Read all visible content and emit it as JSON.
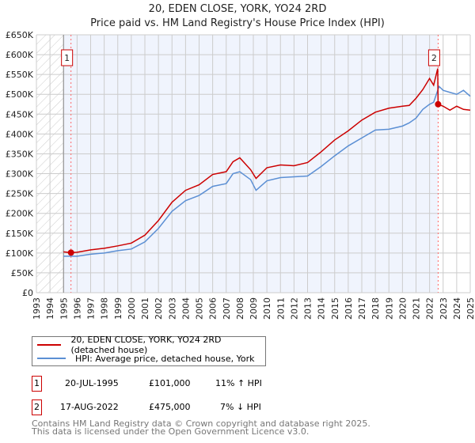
{
  "chart_data": {
    "type": "line",
    "title": "20, EDEN CLOSE, YORK, YO24 2RD",
    "subtitle": "Price paid vs. HM Land Registry's House Price Index (HPI)",
    "xlim": [
      1993,
      2025
    ],
    "ylim": [
      0,
      650000
    ],
    "x_ticks": [
      "1993",
      "1994",
      "1995",
      "1996",
      "1997",
      "1998",
      "1999",
      "2000",
      "2001",
      "2002",
      "2003",
      "2004",
      "2005",
      "2006",
      "2007",
      "2008",
      "2009",
      "2010",
      "2011",
      "2012",
      "2013",
      "2014",
      "2015",
      "2016",
      "2017",
      "2018",
      "2019",
      "2020",
      "2021",
      "2022",
      "2023",
      "2024",
      "2025"
    ],
    "y_ticks": [
      "£0",
      "£50K",
      "£100K",
      "£150K",
      "£200K",
      "£250K",
      "£300K",
      "£350K",
      "£400K",
      "£450K",
      "£500K",
      "£550K",
      "£600K",
      "£650K"
    ],
    "grid": true,
    "series": [
      {
        "name": "20, EDEN CLOSE, YORK, YO24 2RD (detached house)",
        "color": "#cc0000",
        "x": [
          1995,
          1995.55,
          1996,
          1997,
          1998,
          1999,
          2000,
          2001,
          2002,
          2003,
          2004,
          2005,
          2006,
          2007,
          2007.5,
          2008,
          2008.8,
          2009.2,
          2010,
          2011,
          2012,
          2013,
          2014,
          2015,
          2016,
          2017,
          2018,
          2019,
          2020,
          2020.5,
          2021,
          2021.5,
          2022,
          2022.3,
          2022.6,
          2022.63,
          2023,
          2023.5,
          2024,
          2024.5,
          2025
        ],
        "y": [
          103000,
          101000,
          102000,
          108000,
          112000,
          118000,
          125000,
          145000,
          182000,
          228000,
          258000,
          272000,
          298000,
          305000,
          330000,
          340000,
          310000,
          288000,
          315000,
          322000,
          320000,
          328000,
          355000,
          385000,
          408000,
          435000,
          455000,
          465000,
          470000,
          472000,
          490000,
          512000,
          540000,
          523000,
          565000,
          475000,
          470000,
          460000,
          470000,
          462000,
          460000
        ]
      },
      {
        "name": "HPI: Average price, detached house, York",
        "color": "#5b8fd4",
        "x": [
          1995,
          1996,
          1997,
          1998,
          1999,
          2000,
          2001,
          2002,
          2003,
          2004,
          2005,
          2006,
          2007,
          2007.5,
          2008,
          2008.8,
          2009.2,
          2010,
          2011,
          2012,
          2013,
          2014,
          2015,
          2016,
          2017,
          2018,
          2019,
          2020,
          2020.5,
          2021,
          2021.5,
          2022,
          2022.3,
          2022.7,
          2023,
          2023.5,
          2024,
          2024.5,
          2025
        ],
        "y": [
          92000,
          92000,
          97000,
          100000,
          106000,
          110000,
          128000,
          162000,
          205000,
          232000,
          245000,
          268000,
          275000,
          300000,
          305000,
          285000,
          258000,
          282000,
          290000,
          292000,
          294000,
          318000,
          345000,
          370000,
          390000,
          410000,
          412000,
          420000,
          428000,
          440000,
          462000,
          475000,
          480000,
          520000,
          510000,
          505000,
          500000,
          510000,
          495000
        ]
      }
    ],
    "annotations": [
      {
        "label": "1",
        "x": 1995.55,
        "y": 101000
      },
      {
        "label": "2",
        "x": 2022.63,
        "y": 475000
      }
    ]
  },
  "transactions": [
    {
      "num": "1",
      "date": "20-JUL-1995",
      "price": "£101,000",
      "hpi": "11% ↑ HPI"
    },
    {
      "num": "2",
      "date": "17-AUG-2022",
      "price": "£475,000",
      "hpi": "7% ↓ HPI"
    }
  ],
  "footer": {
    "line1": "Contains HM Land Registry data © Crown copyright and database right 2025.",
    "line2": "This data is licensed under the Open Government Licence v3.0."
  }
}
